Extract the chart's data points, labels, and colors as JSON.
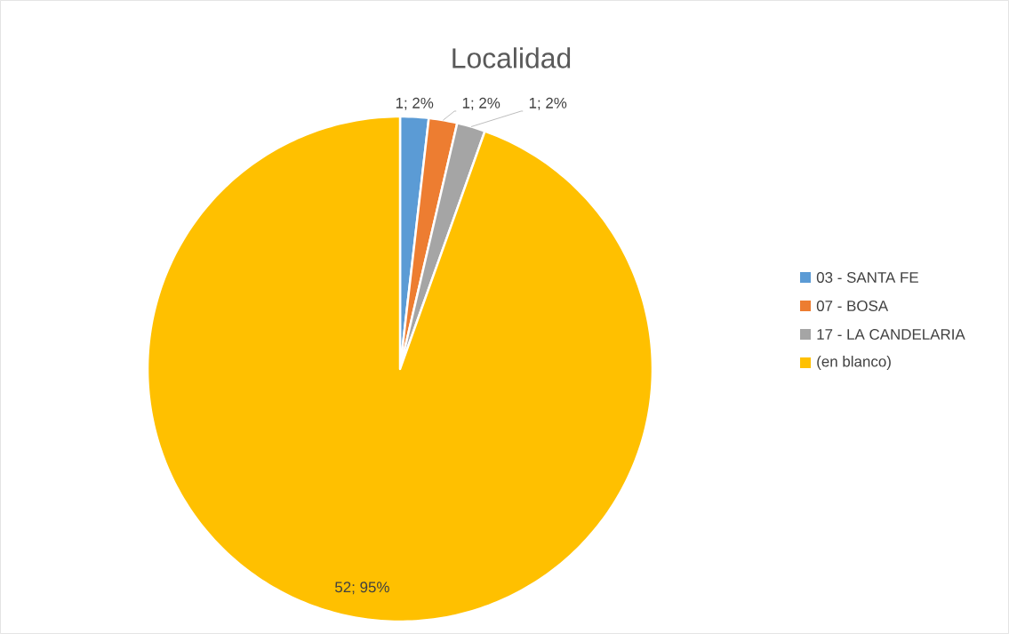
{
  "chart_data": {
    "type": "pie",
    "title": "Localidad",
    "categories": [
      "03 - SANTA FE",
      "07 - BOSA",
      "17 - LA CANDELARIA",
      "(en blanco)"
    ],
    "values": [
      1,
      1,
      1,
      52
    ],
    "colors": [
      "#5b9bd5",
      "#ed7d31",
      "#a5a5a5",
      "#ffc000"
    ],
    "value_labels": [
      "1; 2%",
      "1; 2%",
      "1; 2%",
      "52; 95%"
    ],
    "legend": "right"
  }
}
